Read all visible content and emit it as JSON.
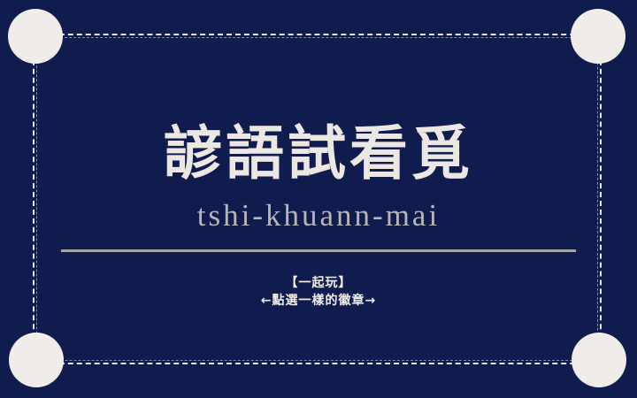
{
  "card": {
    "title": "諺語試看覓",
    "romanization": "tshi-khuann-mai",
    "play_label": "【一起玩】",
    "instruction": "←點選一樣的徽章→"
  },
  "colors": {
    "background": "#0f1c4d",
    "text_primary": "#ece7e2",
    "text_secondary": "#b8b5b5",
    "corner_dots": "#f0ecea",
    "divider": "#a6a5a6"
  }
}
